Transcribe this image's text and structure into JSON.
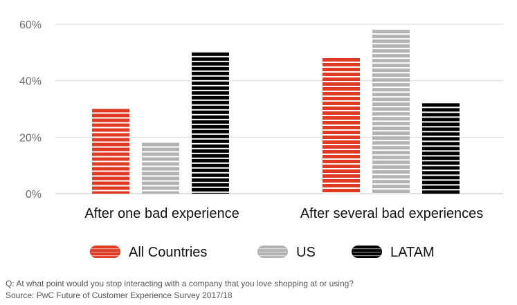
{
  "chart_data": {
    "type": "bar",
    "categories": [
      "After one bad experience",
      "After several bad experiences"
    ],
    "series": [
      {
        "name": "All Countries",
        "values": [
          30,
          48
        ],
        "color": "#e03a25"
      },
      {
        "name": "US",
        "values": [
          18,
          58
        ],
        "color": "#b3b3b3"
      },
      {
        "name": "LATAM",
        "values": [
          50,
          32
        ],
        "color": "#000000"
      }
    ],
    "yticks": [
      "0%",
      "20%",
      "40%",
      "60%"
    ],
    "ylim": [
      0,
      60
    ],
    "grid": true,
    "legend_position": "bottom"
  },
  "footnote": {
    "question": "Q: At what point would you stop interacting with a company that you love shopping at or using?",
    "source": "Source: PwC Future of Customer Experience Survey 2017/18"
  }
}
